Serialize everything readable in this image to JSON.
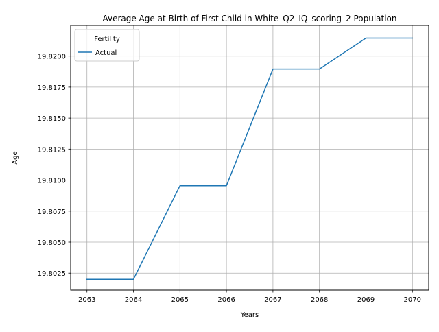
{
  "chart_data": {
    "type": "line",
    "title": "Average Age at Birth of First Child in White_Q2_IQ_scoring_2 Population",
    "xlabel": "Years",
    "ylabel": "Age",
    "x": [
      2063,
      2064,
      2065,
      2066,
      2067,
      2068,
      2069,
      2070
    ],
    "x_tick_labels": [
      "2063",
      "2064",
      "2065",
      "2066",
      "2067",
      "2068",
      "2069",
      "2070"
    ],
    "y_ticks": [
      19.8025,
      19.805,
      19.8075,
      19.81,
      19.8125,
      19.815,
      19.8175,
      19.82
    ],
    "y_tick_labels": [
      "19.8025",
      "19.8050",
      "19.8075",
      "19.8100",
      "19.8125",
      "19.8150",
      "19.8175",
      "19.8200"
    ],
    "xlim": [
      2062.65,
      2070.35
    ],
    "ylim": [
      19.80113,
      19.82247
    ],
    "grid": true,
    "legend": {
      "title": "Fertility",
      "placement": "top-left"
    },
    "series": [
      {
        "name": "Actual",
        "color": "#1f77b4",
        "values": [
          19.802,
          19.802,
          19.80955,
          19.80955,
          19.81895,
          19.81895,
          19.82145,
          19.82145
        ]
      }
    ]
  }
}
